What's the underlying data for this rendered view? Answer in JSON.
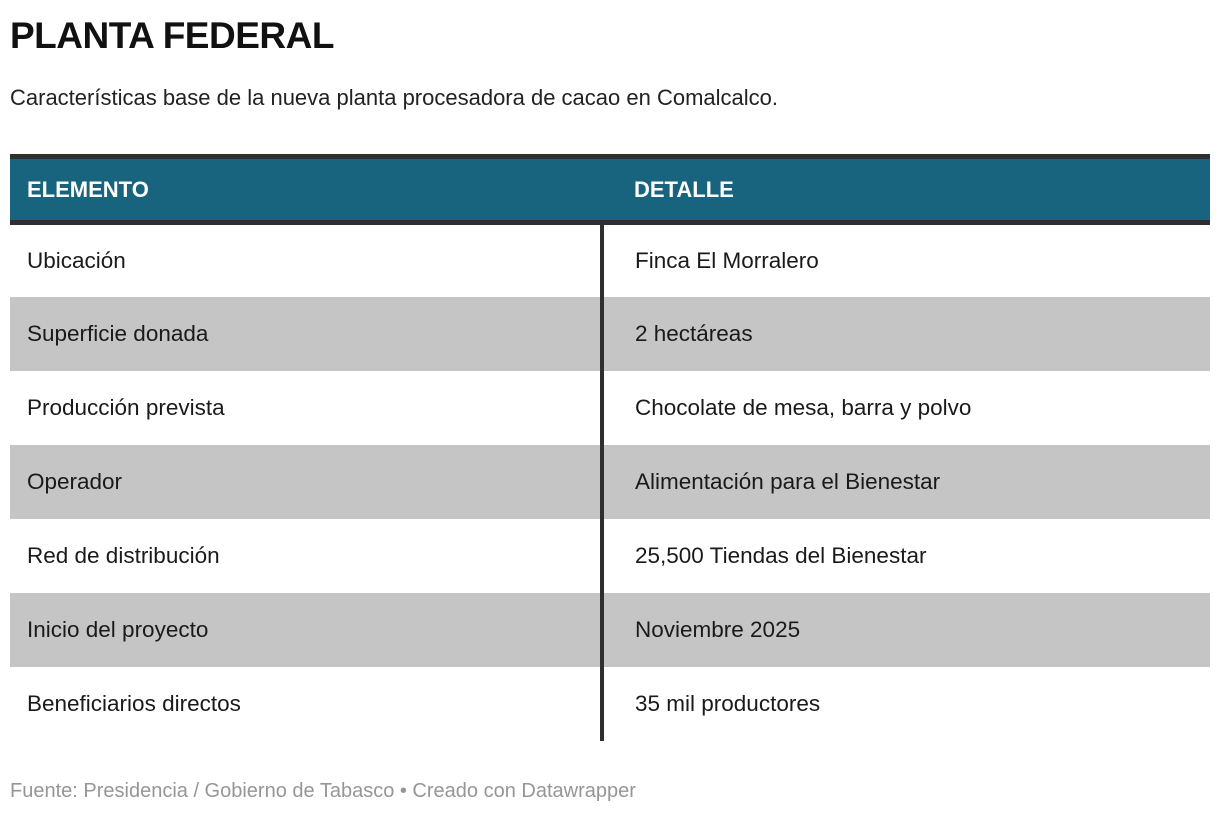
{
  "header": {
    "title": "PLANTA FEDERAL",
    "subtitle": "Características base de la nueva planta procesadora de cacao en Comalcalco."
  },
  "chart_data": {
    "type": "table",
    "title": "PLANTA FEDERAL",
    "subtitle": "Características base de la nueva planta procesadora de cacao en Comalcalco.",
    "columns": [
      "ELEMENTO",
      "DETALLE"
    ],
    "rows": [
      {
        "elemento": "Ubicación",
        "detalle": "Finca El Morralero"
      },
      {
        "elemento": "Superficie donada",
        "detalle": "2 hectáreas"
      },
      {
        "elemento": "Producción prevista",
        "detalle": "Chocolate de mesa, barra y polvo"
      },
      {
        "elemento": "Operador",
        "detalle": "Alimentación para el Bienestar"
      },
      {
        "elemento": "Red de distribución",
        "detalle": "25,500 Tiendas del Bienestar"
      },
      {
        "elemento": "Inicio del proyecto",
        "detalle": "Noviembre 2025"
      },
      {
        "elemento": "Beneficiarios directos",
        "detalle": "35 mil productores"
      }
    ],
    "source": "Fuente: Presidencia / Gobierno de Tabasco • Creado con Datawrapper",
    "layout": {
      "striped": true,
      "stripe_style": "even-rows-gray",
      "column_divider": true
    }
  },
  "footer": {
    "source": "Fuente: Presidencia / Gobierno de Tabasco • Creado con Datawrapper"
  },
  "colors": {
    "header_bg": "#18637E",
    "header_text": "#FFFFFF",
    "border_dark": "#2F2F2F",
    "row_alt": "#C5C5C5",
    "body_text": "#1A1A1A",
    "muted_text": "#969696"
  }
}
